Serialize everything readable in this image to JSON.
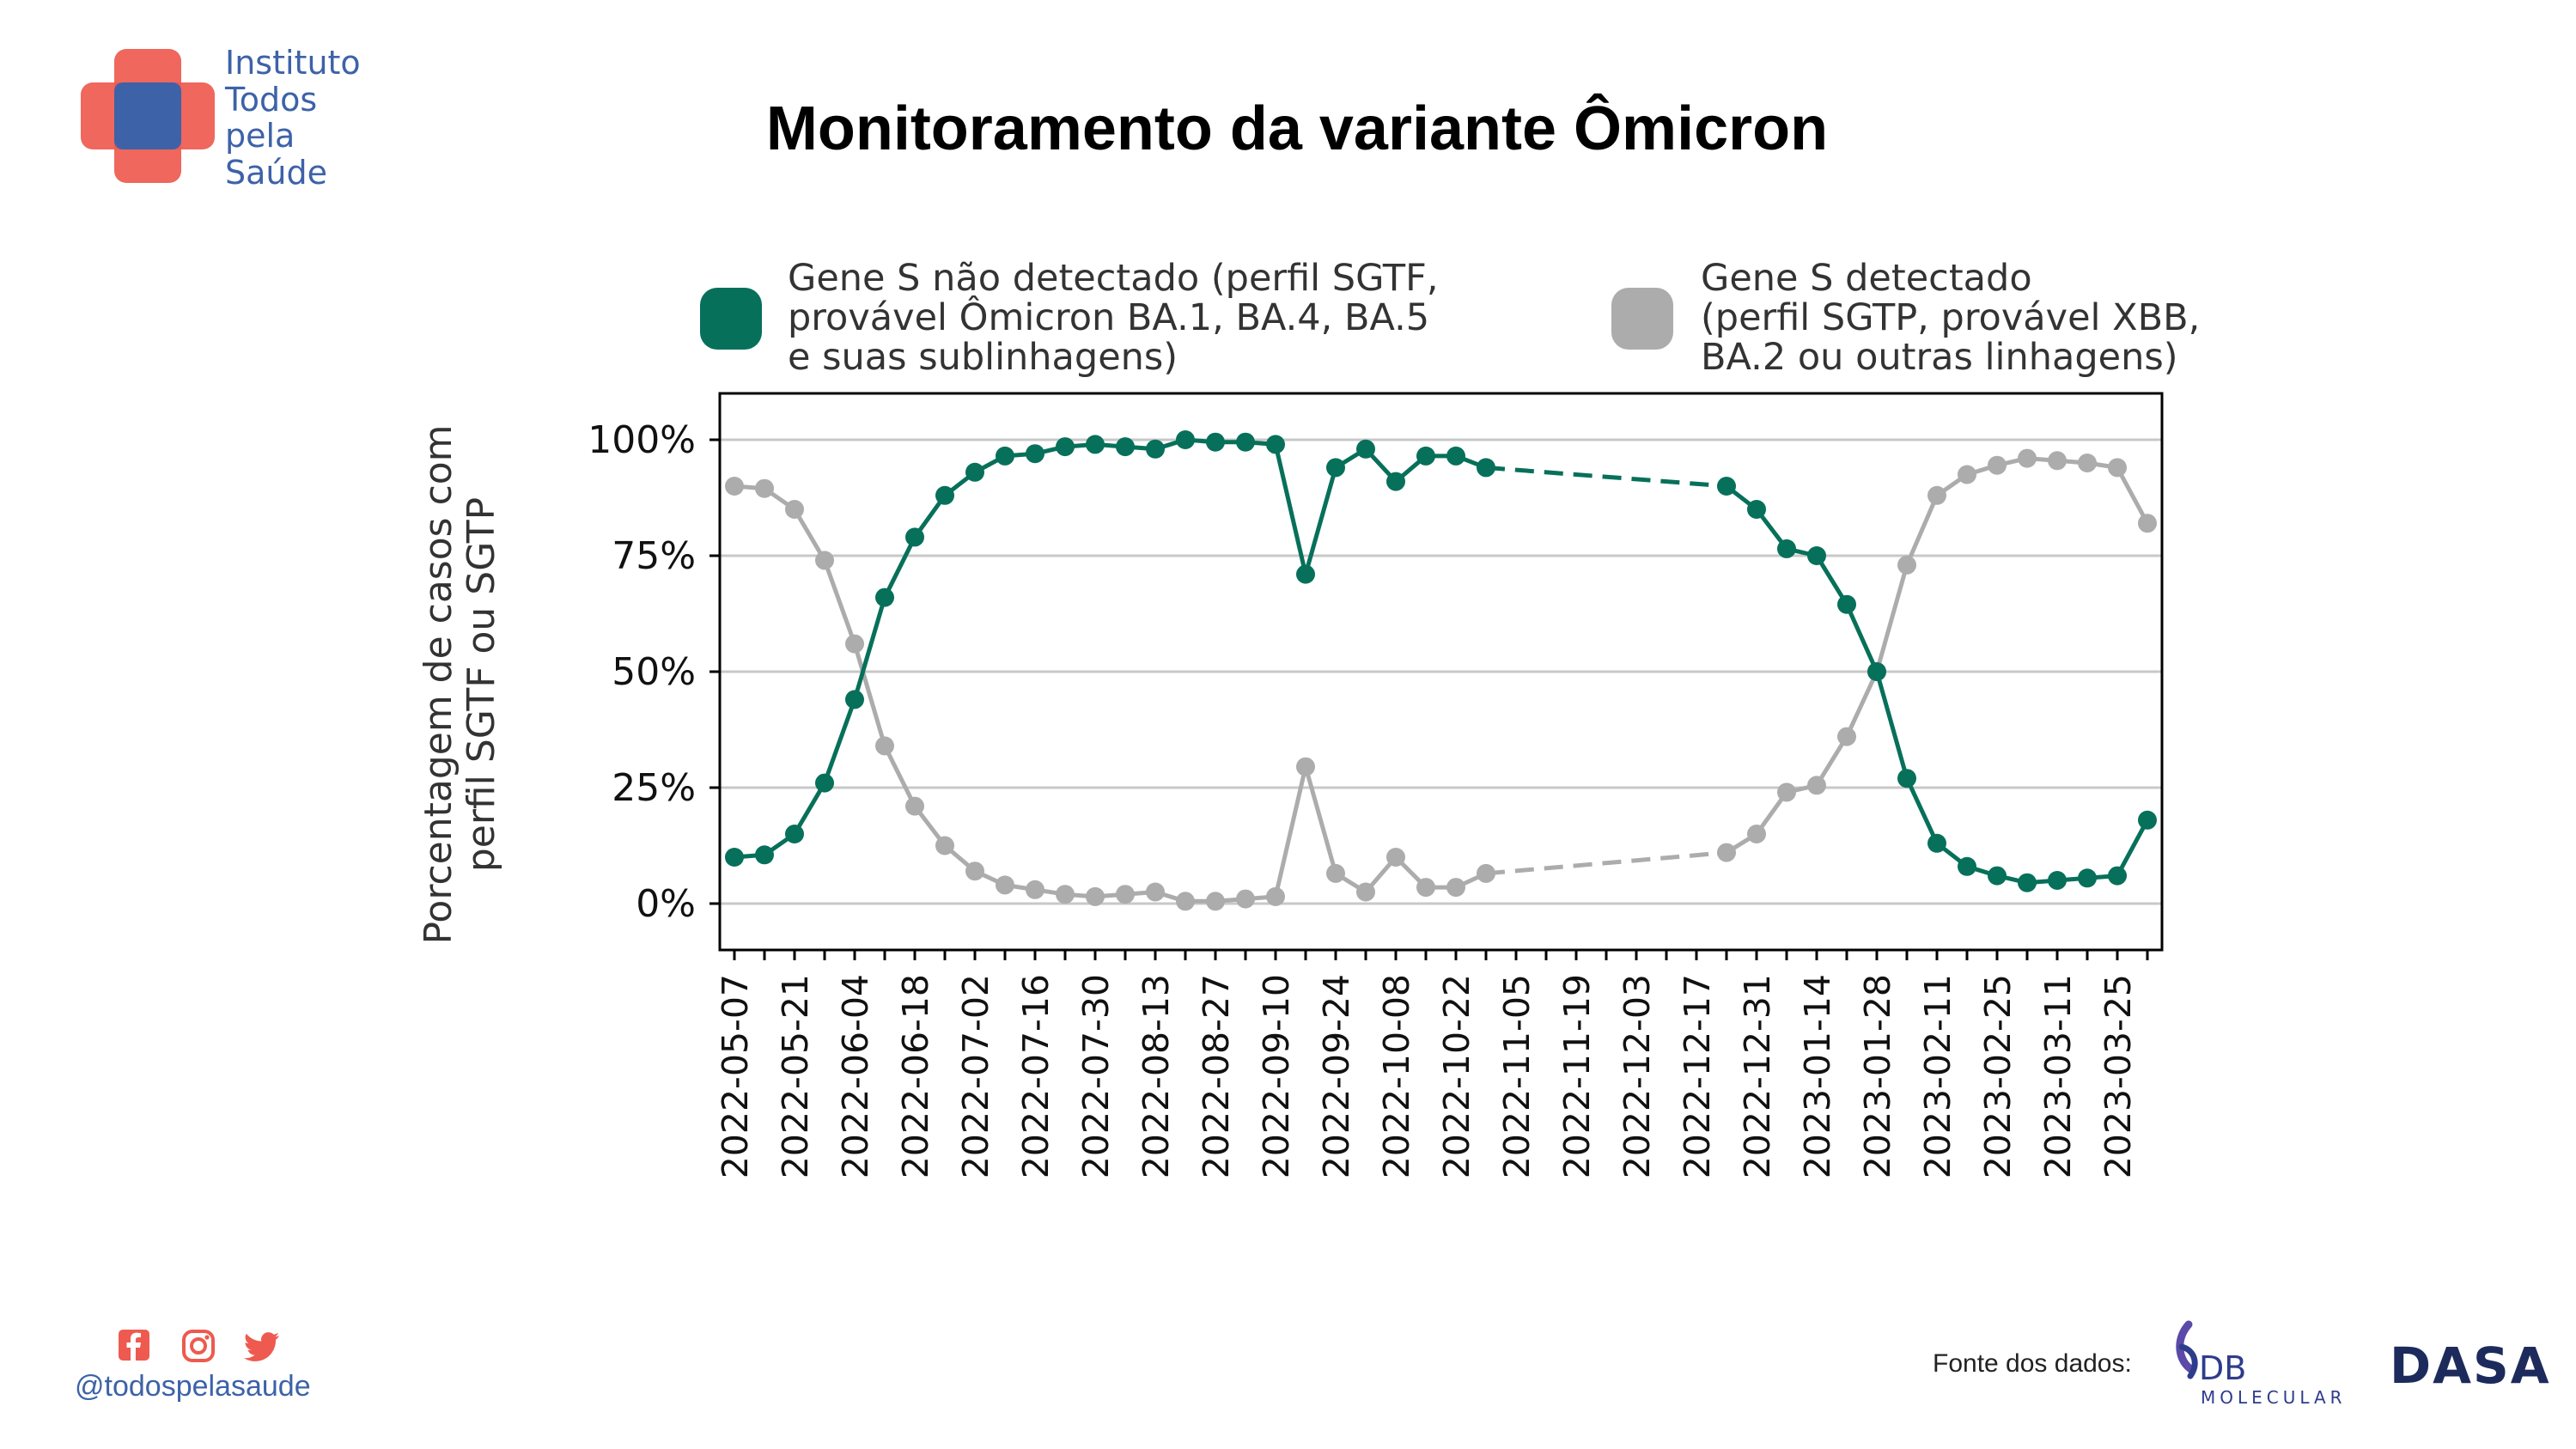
{
  "brand": {
    "name_lines": [
      "Instituto",
      "Todos",
      "pela",
      "Saúde"
    ],
    "handle": "@todospelasaude",
    "colors": {
      "cross_red": "#ee5a4f",
      "cross_blue": "#3d62a8"
    }
  },
  "social": {
    "icons": [
      "facebook-icon",
      "instagram-icon",
      "twitter-icon"
    ],
    "color": "#ee5a4f"
  },
  "footer": {
    "source_label": "Fonte dos dados:",
    "partners": [
      {
        "name": "DB",
        "sub": "MOLECULAR"
      },
      {
        "name": "DASA"
      }
    ]
  },
  "chart_data": {
    "type": "line",
    "title": "Monitoramento da variante Ômicron",
    "ylabel_lines": [
      "Porcentagem de casos com",
      "perfil SGTF ou SGTP"
    ],
    "ylim": [
      -10,
      110
    ],
    "yticks": [
      0,
      25,
      50,
      75,
      100
    ],
    "ytick_labels": [
      "0%",
      "25%",
      "50%",
      "75%",
      "100%"
    ],
    "x_start": "2022-05-07",
    "x_end": "2023-04-01",
    "xtick_labels": [
      "2022-05-07",
      "2022-05-21",
      "2022-06-04",
      "2022-06-18",
      "2022-07-02",
      "2022-07-16",
      "2022-07-30",
      "2022-08-13",
      "2022-08-27",
      "2022-09-10",
      "2022-09-24",
      "2022-10-08",
      "2022-10-22",
      "2022-11-05",
      "2022-11-19",
      "2022-12-03",
      "2022-12-17",
      "2022-12-31",
      "2023-01-14",
      "2023-01-28",
      "2023-02-11",
      "2023-02-25",
      "2023-03-11",
      "2023-03-25"
    ],
    "grid": true,
    "legend_position": "top",
    "series": [
      {
        "name_lines": [
          "Gene S não detectado (perfil SGTF,",
          "provável Ômicron BA.1, BA.4, BA.5",
          "e suas sublinhagens)"
        ],
        "color": "#07705a",
        "gap_dashed": [
          "2022-11-05",
          "2022-12-24"
        ],
        "points": [
          [
            "2022-05-07",
            10
          ],
          [
            "2022-05-14",
            10.5
          ],
          [
            "2022-05-21",
            15
          ],
          [
            "2022-05-28",
            26
          ],
          [
            "2022-06-04",
            44
          ],
          [
            "2022-06-11",
            66
          ],
          [
            "2022-06-18",
            79
          ],
          [
            "2022-06-25",
            88
          ],
          [
            "2022-07-02",
            93
          ],
          [
            "2022-07-09",
            96.5
          ],
          [
            "2022-07-16",
            97
          ],
          [
            "2022-07-23",
            98.5
          ],
          [
            "2022-07-30",
            99
          ],
          [
            "2022-08-06",
            98.5
          ],
          [
            "2022-08-13",
            98
          ],
          [
            "2022-08-20",
            100
          ],
          [
            "2022-08-27",
            99.5
          ],
          [
            "2022-09-03",
            99.5
          ],
          [
            "2022-09-10",
            99
          ],
          [
            "2022-09-17",
            71
          ],
          [
            "2022-09-24",
            94
          ],
          [
            "2022-10-01",
            98
          ],
          [
            "2022-10-08",
            91
          ],
          [
            "2022-10-15",
            96.5
          ],
          [
            "2022-10-22",
            96.5
          ],
          [
            "2022-10-29",
            94
          ],
          [
            "2022-12-24",
            90
          ],
          [
            "2022-12-31",
            85
          ],
          [
            "2023-01-07",
            76.5
          ],
          [
            "2023-01-14",
            75
          ],
          [
            "2023-01-21",
            64.5
          ],
          [
            "2023-01-28",
            50
          ],
          [
            "2023-02-04",
            27
          ],
          [
            "2023-02-11",
            13
          ],
          [
            "2023-02-18",
            8
          ],
          [
            "2023-02-25",
            6
          ],
          [
            "2023-03-04",
            4.5
          ],
          [
            "2023-03-11",
            5
          ],
          [
            "2023-03-18",
            5.5
          ],
          [
            "2023-03-25",
            6
          ],
          [
            "2023-04-01",
            18
          ]
        ]
      },
      {
        "name_lines": [
          "Gene S detectado",
          "(perfil SGTP, provável XBB,",
          "BA.2 ou outras linhagens)"
        ],
        "color": "#acacac",
        "gap_dashed": [
          "2022-11-05",
          "2022-12-24"
        ],
        "points": [
          [
            "2022-05-07",
            90
          ],
          [
            "2022-05-14",
            89.5
          ],
          [
            "2022-05-21",
            85
          ],
          [
            "2022-05-28",
            74
          ],
          [
            "2022-06-04",
            56
          ],
          [
            "2022-06-11",
            34
          ],
          [
            "2022-06-18",
            21
          ],
          [
            "2022-06-25",
            12.5
          ],
          [
            "2022-07-02",
            7
          ],
          [
            "2022-07-09",
            4
          ],
          [
            "2022-07-16",
            3
          ],
          [
            "2022-07-23",
            2
          ],
          [
            "2022-07-30",
            1.5
          ],
          [
            "2022-08-06",
            2
          ],
          [
            "2022-08-13",
            2.5
          ],
          [
            "2022-08-20",
            0.5
          ],
          [
            "2022-08-27",
            0.5
          ],
          [
            "2022-09-03",
            1
          ],
          [
            "2022-09-10",
            1.5
          ],
          [
            "2022-09-17",
            29.5
          ],
          [
            "2022-09-24",
            6.5
          ],
          [
            "2022-10-01",
            2.5
          ],
          [
            "2022-10-08",
            10
          ],
          [
            "2022-10-15",
            3.5
          ],
          [
            "2022-10-22",
            3.5
          ],
          [
            "2022-10-29",
            6.5
          ],
          [
            "2022-12-24",
            11
          ],
          [
            "2022-12-31",
            15
          ],
          [
            "2023-01-07",
            24
          ],
          [
            "2023-01-14",
            25.5
          ],
          [
            "2023-01-21",
            36
          ],
          [
            "2023-01-28",
            50
          ],
          [
            "2023-02-04",
            73
          ],
          [
            "2023-02-11",
            88
          ],
          [
            "2023-02-18",
            92.5
          ],
          [
            "2023-02-25",
            94.5
          ],
          [
            "2023-03-04",
            96
          ],
          [
            "2023-03-11",
            95.5
          ],
          [
            "2023-03-18",
            95
          ],
          [
            "2023-03-25",
            94
          ],
          [
            "2023-04-01",
            82
          ]
        ]
      }
    ]
  }
}
